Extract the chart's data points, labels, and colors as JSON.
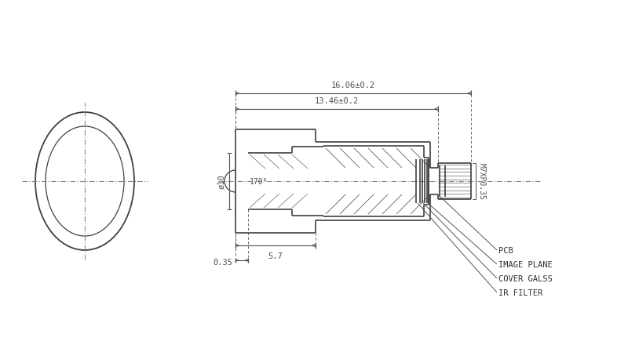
{
  "bg_color": "#ffffff",
  "line_color": "#404040",
  "dim_color": "#505050",
  "labels": {
    "dim_57": "5.7",
    "dim_035": "0.35",
    "dim_phi10": "ø10",
    "dim_170": "170°",
    "dim_1346": "13.46±0.2",
    "dim_1606": "16.06±0.2",
    "dim_m7": "M7XP0.35",
    "label_ir": "IR FILTER",
    "label_cover": "COVER GALSS",
    "label_image": "IMAGE PLANE",
    "label_pcb": "PCB"
  }
}
